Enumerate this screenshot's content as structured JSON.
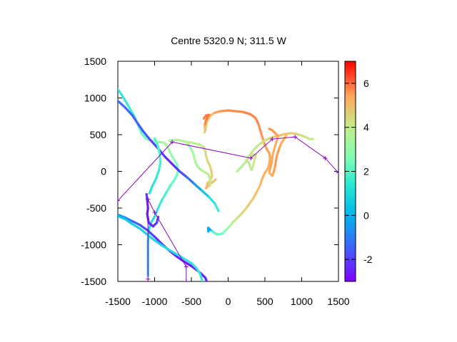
{
  "chart_data": {
    "type": "scatter",
    "title": "Centre 5320.9 N; 311.5  W",
    "xlabel": "",
    "ylabel": "",
    "xlim": [
      -1500,
      1500
    ],
    "ylim": [
      -1500,
      1500
    ],
    "xticks": [
      -1500,
      -1000,
      -500,
      0,
      500,
      1000,
      1500
    ],
    "yticks": [
      -1500,
      -1000,
      -500,
      0,
      500,
      1000,
      1500
    ],
    "grid": false,
    "colorbar": {
      "range": [
        -3,
        7
      ],
      "ticks": [
        -2,
        0,
        2,
        4,
        6
      ],
      "colormap": "rainbow"
    },
    "tracks": [
      {
        "points": [
          [
            -1500,
            1120,
            0.5
          ],
          [
            -1420,
            1000,
            0.6
          ],
          [
            -1350,
            880,
            0.7
          ],
          [
            -1280,
            760,
            0.9
          ],
          [
            -1220,
            620,
            1.0
          ],
          [
            -1170,
            510,
            1.3
          ],
          [
            -1110,
            440,
            1.8
          ],
          [
            -1020,
            410,
            2.4
          ],
          [
            -930,
            400,
            2.6
          ],
          [
            -870,
            390,
            2.8
          ],
          [
            -820,
            330,
            2.8
          ],
          [
            -790,
            260,
            2.6
          ],
          [
            -760,
            200,
            2.4
          ],
          [
            -720,
            140,
            2.2
          ],
          [
            -690,
            80,
            2.0
          ],
          [
            -680,
            10,
            1.8
          ],
          [
            -700,
            -60,
            1.6
          ],
          [
            -740,
            -130,
            1.5
          ],
          [
            -790,
            -200,
            1.3
          ],
          [
            -840,
            -290,
            1.0
          ],
          [
            -900,
            -390,
            0.8
          ],
          [
            -960,
            -520,
            0.6
          ],
          [
            -1000,
            -620,
            0.4
          ],
          [
            -1050,
            -700,
            0.3
          ],
          [
            -1080,
            -800,
            0.2
          ],
          [
            -1090,
            -950,
            0.1
          ],
          [
            -1090,
            -1100,
            0.1
          ],
          [
            -1090,
            -1250,
            0.1
          ],
          [
            -1090,
            -1420,
            0.1
          ]
        ]
      },
      {
        "points": [
          [
            -1500,
            960,
            -1.5
          ],
          [
            -1400,
            870,
            -1.6
          ],
          [
            -1300,
            760,
            -1.7
          ],
          [
            -1220,
            640,
            -1.8
          ],
          [
            -1150,
            540,
            -1.9
          ],
          [
            -1060,
            430,
            -2.1
          ],
          [
            -960,
            320,
            -2.2
          ],
          [
            -860,
            200,
            -2.4
          ],
          [
            -760,
            100,
            -2.5
          ],
          [
            -660,
            0,
            -2.4
          ],
          [
            -560,
            -80,
            -1.8
          ],
          [
            -460,
            -170,
            -1.2
          ],
          [
            -360,
            -260,
            -0.5
          ],
          [
            -260,
            -350,
            0.2
          ],
          [
            -180,
            -440,
            0.6
          ],
          [
            -130,
            -540,
            0.7
          ]
        ]
      },
      {
        "points": [
          [
            -1500,
            -590,
            -1.0
          ],
          [
            -1400,
            -630,
            -1.2
          ],
          [
            -1300,
            -680,
            -1.5
          ],
          [
            -1200,
            -730,
            -1.9
          ],
          [
            -1100,
            -800,
            -2.1
          ],
          [
            -1000,
            -890,
            -2.3
          ],
          [
            -900,
            -990,
            -2.4
          ],
          [
            -800,
            -1080,
            -2.5
          ],
          [
            -700,
            -1160,
            -2.6
          ],
          [
            -600,
            -1230,
            -2.7
          ],
          [
            -500,
            -1290,
            -2.8
          ],
          [
            -420,
            -1350,
            -2.8
          ],
          [
            -360,
            -1400,
            -2.7
          ],
          [
            -310,
            -1450,
            -2.6
          ],
          [
            -290,
            -1500,
            -2.5
          ]
        ]
      },
      {
        "points": [
          [
            -1500,
            -610,
            -0.3
          ],
          [
            -1400,
            -650,
            -0.2
          ],
          [
            -1300,
            -720,
            0.0
          ],
          [
            -1200,
            -780,
            0.1
          ],
          [
            -1100,
            -860,
            0.1
          ],
          [
            -1000,
            -940,
            0.1
          ],
          [
            -900,
            -1010,
            0.2
          ],
          [
            -800,
            -1070,
            0.3
          ],
          [
            -700,
            -1130,
            0.4
          ],
          [
            -600,
            -1190,
            0.4
          ],
          [
            -500,
            -1250,
            0.5
          ],
          [
            -430,
            -1320,
            0.5
          ],
          [
            -380,
            -1400,
            0.6
          ],
          [
            -350,
            -1500,
            0.6
          ]
        ]
      },
      {
        "points": [
          [
            -1110,
            -310,
            -2.2
          ],
          [
            -1100,
            -400,
            -2.3
          ],
          [
            -1090,
            -500,
            -2.4
          ],
          [
            -1100,
            -580,
            -2.5
          ],
          [
            -1090,
            -640,
            -2.6
          ],
          [
            -1080,
            -700,
            -2.6
          ],
          [
            -1020,
            -750,
            -2.5
          ],
          [
            -970,
            -700,
            -2.3
          ],
          [
            -950,
            -620,
            -2.2
          ]
        ]
      },
      {
        "points": [
          [
            -1000,
            450,
            1.2
          ],
          [
            -960,
            360,
            1.1
          ],
          [
            -930,
            240,
            1.0
          ],
          [
            -920,
            120,
            0.9
          ],
          [
            -940,
            20,
            0.8
          ],
          [
            -980,
            -100,
            0.6
          ],
          [
            -1030,
            -200,
            0.5
          ],
          [
            -1070,
            -300,
            0.4
          ]
        ]
      },
      {
        "points": [
          [
            -800,
            420,
            2.9
          ],
          [
            -700,
            430,
            3.0
          ],
          [
            -600,
            410,
            3.1
          ],
          [
            -500,
            390,
            3.1
          ],
          [
            -400,
            370,
            3.2
          ],
          [
            -330,
            330,
            3.4
          ],
          [
            -310,
            270,
            3.6
          ],
          [
            -300,
            210,
            3.7
          ],
          [
            -280,
            140,
            3.8
          ],
          [
            -250,
            80,
            3.9
          ],
          [
            -230,
            10,
            4.0
          ],
          [
            -220,
            -60,
            4.1
          ],
          [
            -240,
            -120,
            4.2
          ],
          [
            -280,
            -160,
            4.2
          ],
          [
            -300,
            -230,
            4.4
          ],
          [
            -260,
            -180,
            4.5
          ],
          [
            -200,
            -140,
            4.4
          ],
          [
            -170,
            -110,
            4.3
          ]
        ]
      },
      {
        "points": [
          [
            -550,
            380,
            2.8
          ],
          [
            -500,
            300,
            2.7
          ],
          [
            -470,
            230,
            2.8
          ],
          [
            -450,
            140,
            2.8
          ],
          [
            -420,
            70,
            2.9
          ],
          [
            -370,
            20,
            3.0
          ],
          [
            -320,
            -10,
            3.1
          ],
          [
            -270,
            -40,
            3.2
          ],
          [
            -240,
            -120,
            3.3
          ],
          [
            -250,
            -200,
            3.4
          ]
        ]
      },
      {
        "points": [
          [
            -320,
            530,
            3.6
          ],
          [
            -300,
            610,
            3.7
          ],
          [
            -280,
            690,
            3.8
          ],
          [
            -240,
            760,
            4.1
          ],
          [
            -180,
            800,
            4.6
          ],
          [
            -100,
            820,
            5.0
          ],
          [
            0,
            830,
            5.1
          ],
          [
            100,
            820,
            5.2
          ],
          [
            200,
            810,
            5.2
          ],
          [
            300,
            780,
            5.3
          ],
          [
            370,
            730,
            5.3
          ],
          [
            410,
            650,
            5.2
          ],
          [
            440,
            550,
            5.1
          ],
          [
            470,
            450,
            5.0
          ],
          [
            500,
            360,
            4.9
          ],
          [
            530,
            290,
            4.8
          ],
          [
            560,
            250,
            4.8
          ],
          [
            570,
            180,
            4.7
          ],
          [
            560,
            100,
            4.7
          ],
          [
            540,
            40,
            4.6
          ],
          [
            500,
            -20,
            4.6
          ],
          [
            460,
            -110,
            4.5
          ],
          [
            430,
            -200,
            4.4
          ],
          [
            390,
            -280,
            4.3
          ],
          [
            340,
            -370,
            4.2
          ],
          [
            290,
            -440,
            4.1
          ],
          [
            240,
            -510,
            4.0
          ],
          [
            180,
            -580,
            3.8
          ],
          [
            120,
            -640,
            3.6
          ],
          [
            60,
            -700,
            3.2
          ],
          [
            20,
            -750,
            2.8
          ],
          [
            -30,
            -800,
            2.3
          ],
          [
            -80,
            -850,
            1.8
          ],
          [
            -150,
            -860,
            1.4
          ],
          [
            -210,
            -820,
            1.0
          ],
          [
            -250,
            -790,
            0.8
          ],
          [
            -270,
            -810,
            0.6
          ]
        ]
      },
      {
        "points": [
          [
            -330,
            720,
            5.3
          ],
          [
            -300,
            760,
            5.4
          ],
          [
            -260,
            770,
            5.5
          ],
          [
            -300,
            700,
            5.4
          ],
          [
            -320,
            620,
            5.3
          ],
          [
            -310,
            560,
            3.6
          ]
        ]
      },
      {
        "points": [
          [
            -240,
            -800,
            -0.5
          ],
          [
            -270,
            -770,
            -0.6
          ],
          [
            -270,
            -820,
            -0.7
          ]
        ]
      },
      {
        "points": [
          [
            120,
            0,
            3.0
          ],
          [
            180,
            60,
            3.0
          ],
          [
            240,
            130,
            3.1
          ],
          [
            280,
            200,
            3.2
          ],
          [
            320,
            260,
            3.2
          ],
          [
            380,
            330,
            3.3
          ],
          [
            440,
            380,
            3.4
          ],
          [
            500,
            420,
            3.5
          ],
          [
            560,
            450,
            3.7
          ],
          [
            620,
            470,
            4.0
          ],
          [
            700,
            490,
            4.2
          ],
          [
            780,
            510,
            4.2
          ],
          [
            860,
            520,
            4.1
          ],
          [
            930,
            510,
            3.9
          ],
          [
            990,
            490,
            3.7
          ],
          [
            1050,
            470,
            3.5
          ],
          [
            1110,
            440,
            3.4
          ],
          [
            1150,
            440,
            3.3
          ]
        ]
      },
      {
        "points": [
          [
            560,
            580,
            5.0
          ],
          [
            600,
            560,
            5.1
          ],
          [
            640,
            520,
            5.0
          ],
          [
            680,
            480,
            4.8
          ],
          [
            650,
            380,
            4.6
          ],
          [
            620,
            280,
            4.5
          ],
          [
            600,
            190,
            4.7
          ],
          [
            590,
            110,
            4.8
          ],
          [
            570,
            40,
            4.8
          ],
          [
            560,
            -20,
            4.7
          ],
          [
            600,
            -60,
            4.6
          ],
          [
            620,
            -10,
            4.8
          ],
          [
            640,
            80,
            4.9
          ],
          [
            660,
            200,
            5.0
          ],
          [
            690,
            300,
            4.9
          ],
          [
            720,
            380,
            4.7
          ],
          [
            760,
            440,
            4.6
          ],
          [
            790,
            490,
            4.4
          ]
        ]
      },
      {
        "points": [
          [
            250,
            160,
            3.4
          ],
          [
            280,
            120,
            3.3
          ],
          [
            300,
            60,
            3.3
          ],
          [
            320,
            20,
            3.2
          ],
          [
            340,
            80,
            3.2
          ],
          [
            360,
            160,
            3.3
          ],
          [
            380,
            230,
            3.5
          ],
          [
            330,
            230,
            3.5
          ],
          [
            280,
            200,
            3.5
          ]
        ]
      }
    ],
    "waypoints": [
      [
        -1500,
        -400
      ],
      [
        -760,
        400
      ],
      [
        310,
        180
      ],
      [
        600,
        440
      ],
      [
        910,
        470
      ],
      [
        1320,
        180
      ],
      [
        1500,
        -20
      ]
    ],
    "waypoints2": [
      [
        -1090,
        -1470
      ],
      [
        -1090,
        -380
      ],
      [
        -1000,
        -560
      ],
      [
        -570,
        -1300
      ],
      [
        -570,
        -1500
      ]
    ]
  }
}
